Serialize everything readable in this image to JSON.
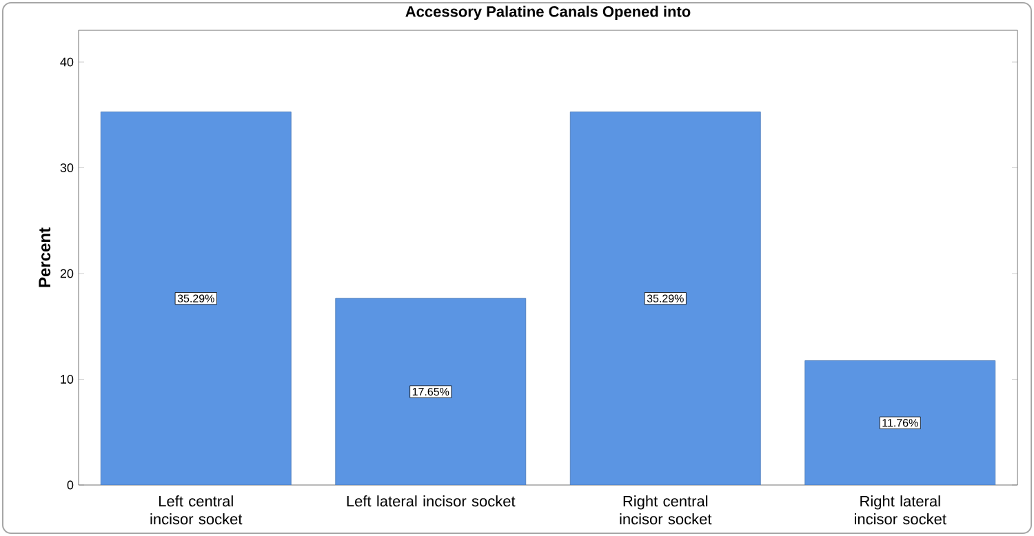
{
  "chart_data": {
    "type": "bar",
    "title": "Accessory Palatine Canals Opened into",
    "ylabel": "Percent",
    "categories": [
      "Left central incisor socket",
      "Left lateral incisor socket",
      "Right central incisor socket",
      "Right lateral incisor socket"
    ],
    "values": [
      35.29,
      17.65,
      35.29,
      11.76
    ],
    "value_labels": [
      "35.29%",
      "17.65%",
      "35.29%",
      "11.76%"
    ],
    "color": "#5b95e3",
    "ylim": [
      0,
      43
    ],
    "yticks": [
      0,
      10,
      20,
      30,
      40
    ],
    "grid": false
  }
}
